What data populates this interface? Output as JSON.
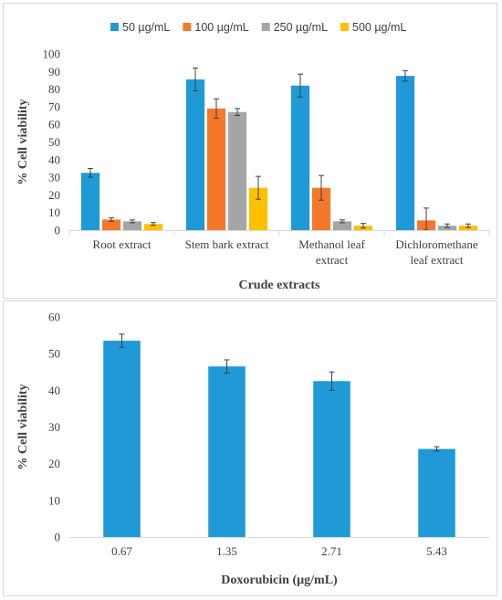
{
  "chart_data": [
    {
      "type": "bar",
      "categories": [
        [
          "Root extract"
        ],
        [
          "Stem bark extract"
        ],
        [
          "Methanol leaf",
          "extract"
        ],
        [
          "Dichloromethane",
          "leaf extract"
        ]
      ],
      "series": [
        {
          "name": "50 µg/mL",
          "color": "#1f9ad6",
          "values": [
            32.5,
            85.5,
            82,
            87.5
          ],
          "errors": [
            2.5,
            6.5,
            6.5,
            3
          ]
        },
        {
          "name": "100 µg/mL",
          "color": "#f4782a",
          "values": [
            6,
            69,
            24,
            5.5
          ],
          "errors": [
            1,
            5.5,
            7,
            7
          ]
        },
        {
          "name": "250 µg/mL",
          "color": "#a5a5a5",
          "values": [
            5,
            67,
            5,
            2.5
          ],
          "errors": [
            0.8,
            2,
            0.8,
            1
          ]
        },
        {
          "name": "500 µg/mL",
          "color": "#ffc000",
          "values": [
            3.5,
            24,
            2.5,
            2.5
          ],
          "errors": [
            0.8,
            6.5,
            1.3,
            1
          ]
        }
      ],
      "title": "",
      "xlabel": "Crude extracts",
      "ylabel": "% Cell viability",
      "ylim": [
        0,
        100
      ],
      "yticks": [
        0,
        10,
        20,
        30,
        40,
        50,
        60,
        70,
        80,
        90,
        100
      ],
      "legend": "top",
      "grid": false
    },
    {
      "type": "bar",
      "categories": [
        [
          "0.67"
        ],
        [
          "1.35"
        ],
        [
          "2.71"
        ],
        [
          "5.43"
        ]
      ],
      "series": [
        {
          "color": "#1f9ad6",
          "values": [
            53.5,
            46.5,
            42.5,
            24
          ],
          "errors": [
            1.8,
            1.8,
            2.5,
            0.6
          ]
        }
      ],
      "title": "",
      "xlabel": "Doxorubicin (µg/mL)",
      "ylabel": "% Cell viability",
      "ylim": [
        0,
        60
      ],
      "yticks": [
        0,
        10,
        20,
        30,
        40,
        50,
        60
      ],
      "grid": false
    }
  ]
}
